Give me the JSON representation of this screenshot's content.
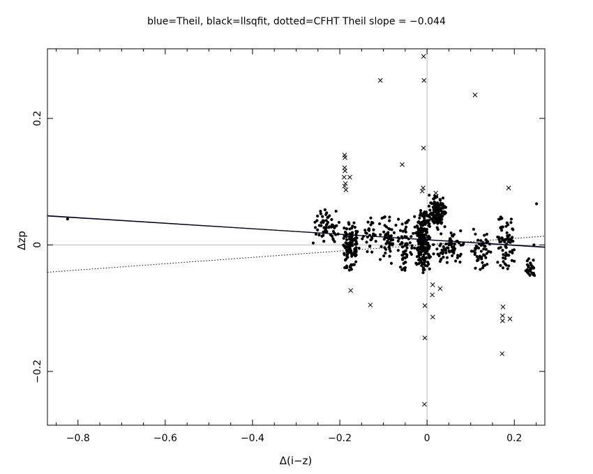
{
  "chart_data": {
    "type": "scatter",
    "title": "blue=Theil, black=llsqfit, dotted=CFHT    Theil slope = −0.044",
    "xlabel": "Δ(i−z)",
    "ylabel": "Δzp",
    "xlim": [
      -0.87,
      0.27
    ],
    "ylim": [
      -0.285,
      0.31
    ],
    "x_ticks": [
      -0.8,
      -0.6,
      -0.4,
      -0.2,
      0,
      0.2
    ],
    "x_tick_labels": [
      "−0.8",
      "−0.6",
      "−0.4",
      "−0.2",
      "0",
      "0.2"
    ],
    "y_ticks": [
      -0.2,
      0,
      0.2
    ],
    "y_tick_labels": [
      "−0.2",
      "0",
      "0.2"
    ],
    "reference_lines": {
      "x": 0,
      "y": 0,
      "color": "#bbbbbb"
    },
    "fit_lines": [
      {
        "name": "Theil",
        "style": "solid",
        "color": "#00008b",
        "slope": -0.044,
        "intercept": 0.008
      },
      {
        "name": "llsqfit",
        "style": "solid",
        "color": "#000000",
        "slope": -0.043,
        "intercept": 0.0083
      },
      {
        "name": "CFHT",
        "style": "dotted",
        "color": "#000000",
        "slope": 0.05,
        "intercept": 0.0003
      }
    ],
    "clusters": [
      {
        "name": "c1",
        "x_range": [
          -0.27,
          -0.19
        ],
        "y_range": [
          -0.005,
          0.06
        ],
        "count": 60
      },
      {
        "name": "c2",
        "x_range": [
          -0.195,
          -0.155
        ],
        "y_range": [
          -0.045,
          0.04
        ],
        "count": 120
      },
      {
        "name": "c3",
        "x_range": [
          -0.15,
          -0.11
        ],
        "y_range": [
          -0.015,
          0.06
        ],
        "count": 30
      },
      {
        "name": "c4",
        "x_range": [
          -0.11,
          -0.07
        ],
        "y_range": [
          -0.04,
          0.055
        ],
        "count": 50
      },
      {
        "name": "c5",
        "x_range": [
          -0.07,
          -0.03
        ],
        "y_range": [
          -0.045,
          0.05
        ],
        "count": 60
      },
      {
        "name": "c6",
        "x_range": [
          -0.03,
          0.01
        ],
        "y_range": [
          -0.045,
          0.06
        ],
        "count": 240
      },
      {
        "name": "c7",
        "x_range": [
          0.0,
          0.045
        ],
        "y_range": [
          0.02,
          0.08
        ],
        "count": 130
      },
      {
        "name": "c8",
        "x_range": [
          0.01,
          0.09
        ],
        "y_range": [
          -0.04,
          0.03
        ],
        "count": 70
      },
      {
        "name": "c9",
        "x_range": [
          0.1,
          0.15
        ],
        "y_range": [
          -0.045,
          0.03
        ],
        "count": 55
      },
      {
        "name": "c10",
        "x_range": [
          0.155,
          0.205
        ],
        "y_range": [
          -0.045,
          0.05
        ],
        "count": 70
      },
      {
        "name": "c11",
        "x_range": [
          0.225,
          0.25
        ],
        "y_range": [
          -0.06,
          -0.02
        ],
        "count": 30
      }
    ],
    "points": [
      [
        -0.824,
        0.041
      ],
      [
        0.251,
        0.065
      ],
      [
        0.245,
        0.0
      ]
    ],
    "outliers": [
      [
        -0.189,
        0.142
      ],
      [
        -0.188,
        0.138
      ],
      [
        -0.189,
        0.122
      ],
      [
        -0.188,
        0.117
      ],
      [
        -0.19,
        0.107
      ],
      [
        -0.187,
        0.097
      ],
      [
        -0.189,
        0.093
      ],
      [
        -0.186,
        0.087
      ],
      [
        -0.177,
        0.107
      ],
      [
        -0.107,
        0.26
      ],
      [
        -0.057,
        0.127
      ],
      [
        -0.008,
        0.298
      ],
      [
        -0.007,
        0.26
      ],
      [
        -0.008,
        0.153
      ],
      [
        -0.011,
        0.085
      ],
      [
        -0.009,
        0.09
      ],
      [
        0.11,
        0.237
      ],
      [
        0.02,
        0.082
      ],
      [
        0.021,
        0.077
      ],
      [
        0.187,
        0.09
      ],
      [
        -0.175,
        -0.072
      ],
      [
        -0.13,
        -0.095
      ],
      [
        0.013,
        -0.063
      ],
      [
        0.012,
        -0.079
      ],
      [
        0.03,
        -0.069
      ],
      [
        0.013,
        -0.114
      ],
      [
        -0.005,
        -0.096
      ],
      [
        -0.005,
        -0.147
      ],
      [
        -0.006,
        -0.252
      ],
      [
        0.174,
        -0.098
      ],
      [
        0.173,
        -0.112
      ],
      [
        0.173,
        -0.12
      ],
      [
        0.19,
        -0.117
      ],
      [
        0.172,
        -0.172
      ]
    ]
  }
}
